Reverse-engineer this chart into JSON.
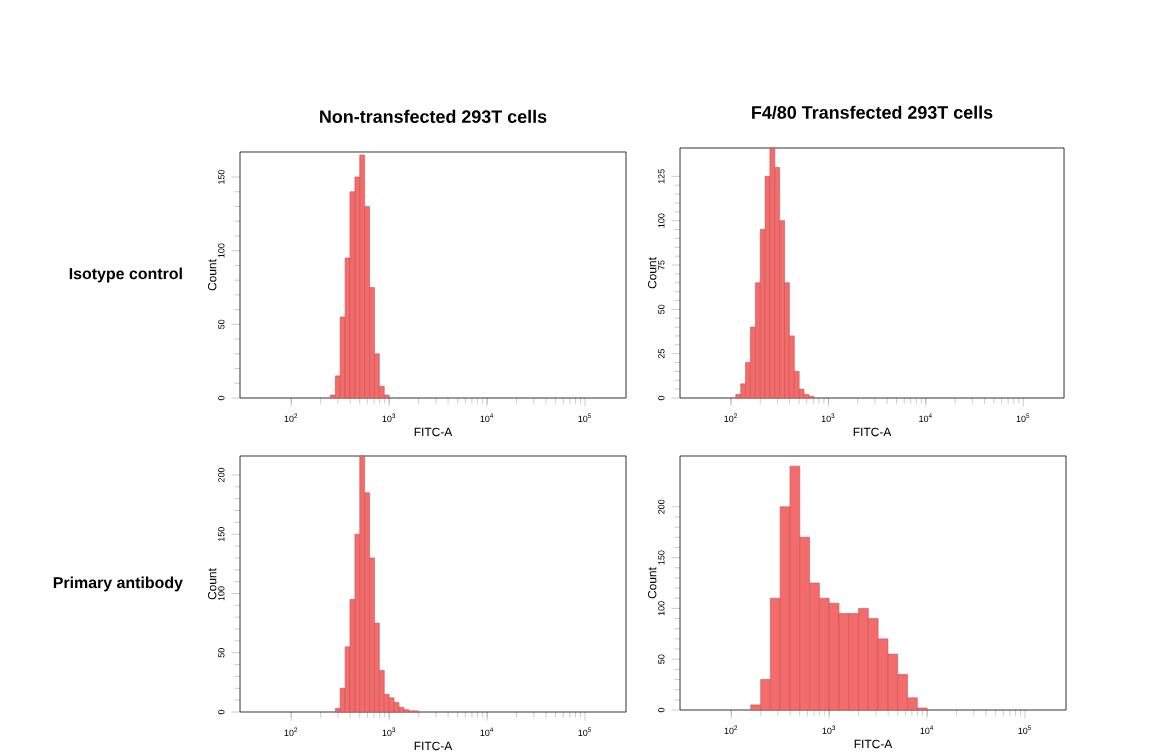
{
  "chart_data": [
    {
      "type": "histogram",
      "title": "Non-transfected 293T cells",
      "annotations": [
        "Isotype control"
      ],
      "xlabel": "FITC-A",
      "ylabel": "Count",
      "log": "x",
      "color": "#f46b6b",
      "bins": [
        251,
        282,
        316,
        355,
        398,
        447,
        501,
        562,
        631,
        708,
        794,
        891,
        1000
      ],
      "values": [
        2,
        15,
        55,
        95,
        140,
        150,
        165,
        130,
        75,
        30,
        8,
        2
      ],
      "xlim": [
        30,
        262144
      ],
      "ylim": [
        0,
        167
      ],
      "xticks": [
        {
          "value": 100,
          "label": "10$^{2}$"
        },
        {
          "value": 1000,
          "label": "10$^{3}$"
        },
        {
          "value": 10000,
          "label": "10$^{4}$"
        },
        {
          "value": 100000,
          "label": "10$^{5}$"
        }
      ],
      "yticks": [
        0,
        50,
        100,
        150
      ]
    },
    {
      "type": "histogram",
      "title": "F4/80  Transfected 293T cells",
      "xlabel": "FITC-A",
      "ylabel": "Count",
      "log": "x",
      "color": "#f46b6b",
      "bins": [
        112,
        126,
        141,
        158,
        178,
        200,
        224,
        251,
        282,
        316,
        355,
        398,
        447,
        501,
        562,
        631,
        708
      ],
      "values": [
        2,
        8,
        20,
        40,
        65,
        95,
        125,
        141,
        130,
        100,
        65,
        35,
        15,
        5,
        2,
        1
      ],
      "xlim": [
        30,
        262144
      ],
      "ylim": [
        0,
        141
      ],
      "xticks": [
        {
          "value": 100,
          "label": "10$^{2}$"
        },
        {
          "value": 1000,
          "label": "10$^{3}$"
        },
        {
          "value": 10000,
          "label": "10$^{4}$"
        },
        {
          "value": 100000,
          "label": "10$^{5}$"
        }
      ],
      "yticks": [
        0,
        25,
        50,
        75,
        100,
        125
      ]
    },
    {
      "type": "histogram",
      "annotations": [
        "Primary  antibody"
      ],
      "xlabel": "FITC-A",
      "ylabel": "Count",
      "log": "x",
      "color": "#f46b6b",
      "bins": [
        282,
        316,
        355,
        398,
        447,
        501,
        562,
        631,
        708,
        794,
        891,
        1000,
        1122,
        1259,
        1413,
        1585,
        1778,
        1995
      ],
      "values": [
        3,
        20,
        55,
        95,
        150,
        216,
        185,
        130,
        75,
        35,
        15,
        12,
        8,
        4,
        2,
        1,
        1
      ],
      "xlim": [
        30,
        262144
      ],
      "ylim": [
        0,
        216
      ],
      "xticks": [
        {
          "value": 100,
          "label": "10$^{2}$"
        },
        {
          "value": 1000,
          "label": "10$^{3}$"
        },
        {
          "value": 10000,
          "label": "10$^{4}$"
        },
        {
          "value": 100000,
          "label": "10$^{5}$"
        }
      ],
      "yticks": [
        0,
        50,
        100,
        150,
        200
      ]
    },
    {
      "type": "histogram",
      "xlabel": "FITC-A",
      "ylabel": "Count",
      "log": "x",
      "color": "#f46b6b",
      "bins": [
        158,
        200,
        251,
        316,
        398,
        501,
        631,
        794,
        1000,
        1259,
        1585,
        1995,
        2512,
        3162,
        3981,
        5012,
        6310,
        7943,
        10000
      ],
      "values": [
        5,
        30,
        110,
        200,
        240,
        170,
        125,
        110,
        105,
        95,
        95,
        100,
        90,
        70,
        55,
        35,
        12,
        2
      ],
      "xlim": [
        30,
        262144
      ],
      "ylim": [
        0,
        250
      ],
      "xticks": [
        {
          "value": 100,
          "label": "10$^{2}$"
        },
        {
          "value": 1000,
          "label": "10$^{3}$"
        },
        {
          "value": 10000,
          "label": "10$^{4}$"
        },
        {
          "value": 100000,
          "label": "10$^{5}$"
        }
      ],
      "yticks": [
        0,
        50,
        100,
        150,
        200
      ]
    }
  ]
}
